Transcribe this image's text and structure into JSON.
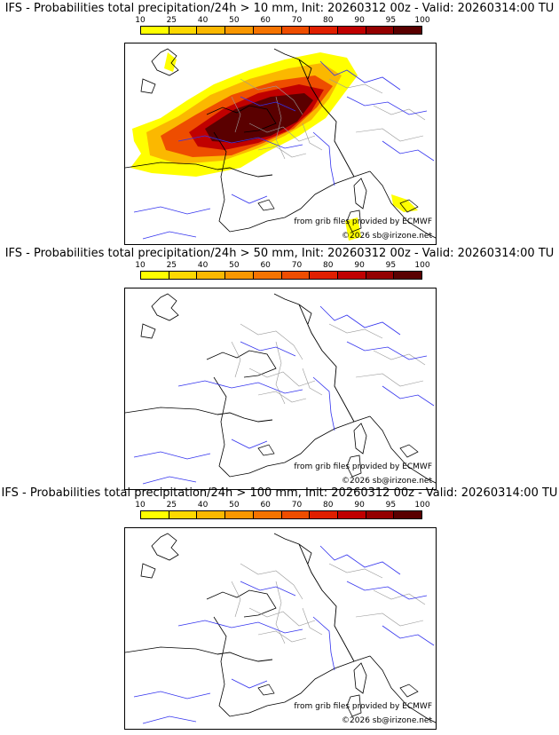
{
  "colorbar": {
    "ticks": [
      "10",
      "25",
      "40",
      "50",
      "60",
      "70",
      "80",
      "90",
      "95",
      "100"
    ],
    "colors": [
      "#ffff00",
      "#fdd800",
      "#fbb800",
      "#f99700",
      "#f57300",
      "#ee4d00",
      "#e01f00",
      "#c00000",
      "#940000",
      "#5a0000"
    ]
  },
  "panels": [
    {
      "title": "IFS - Probabilities total precipitation/24h > 10 mm, Init: 20260312 00z - Valid: 20260314:00 TU",
      "threshold_mm": 10,
      "credit": "from grib files provided by ECMWF",
      "copyright": "©2026 sb@irizone.net"
    },
    {
      "title": "IFS - Probabilities total precipitation/24h > 50 mm, Init: 20260312 00z - Valid: 20260314:00 TU",
      "threshold_mm": 50,
      "credit": "from grib files provided by ECMWF",
      "copyright": "©2026 sb@irizone.net"
    },
    {
      "title": "IFS - Probabilities total precipitation/24h > 100 mm, Init: 20260312 00z - Valid: 20260314:00 TU",
      "threshold_mm": 100,
      "credit": "from grib files provided by ECMWF",
      "copyright": "©2026 sb@irizone.net"
    }
  ]
}
